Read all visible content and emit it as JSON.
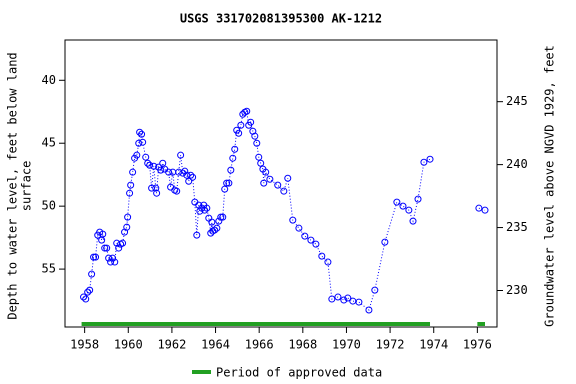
{
  "chart_data": {
    "type": "line",
    "title": "USGS 331702081395300 AK-1212",
    "ylabel": [
      "Depth to water level, feet below land",
      "surface"
    ],
    "y2label": "Groundwater level above NGVD 1929, feet",
    "xlim": [
      1957.1,
      1976.9
    ],
    "xticks": [
      1958,
      1960,
      1962,
      1964,
      1966,
      1968,
      1970,
      1972,
      1974,
      1976
    ],
    "ylim": [
      36.8,
      59.6
    ],
    "y_inverted": true,
    "yticks": [
      40,
      45,
      50,
      55
    ],
    "y2lim": [
      227.1,
      249.9
    ],
    "y2ticks": [
      230,
      235,
      240,
      245
    ],
    "series": [
      {
        "name": "Depth to water level",
        "color": "#0000ff",
        "x": [
          1957.95,
          1958.05,
          1958.14,
          1958.23,
          1958.32,
          1958.41,
          1958.5,
          1958.6,
          1958.69,
          1958.78,
          1958.83,
          1958.92,
          1959.01,
          1959.1,
          1959.19,
          1959.28,
          1959.38,
          1959.47,
          1959.56,
          1959.65,
          1959.74,
          1959.83,
          1959.93,
          1959.97,
          1960.06,
          1960.11,
          1960.2,
          1960.29,
          1960.39,
          1960.48,
          1960.52,
          1960.61,
          1960.66,
          1960.8,
          1960.89,
          1960.98,
          1961.07,
          1961.17,
          1961.26,
          1961.3,
          1961.39,
          1961.49,
          1961.58,
          1961.67,
          1961.85,
          1961.94,
          1962.04,
          1962.13,
          1962.22,
          1962.31,
          1962.4,
          1962.5,
          1962.59,
          1962.68,
          1962.77,
          1962.86,
          1962.95,
          1963.05,
          1963.14,
          1963.23,
          1963.28,
          1963.37,
          1963.46,
          1963.5,
          1963.6,
          1963.69,
          1963.78,
          1963.83,
          1963.87,
          1963.96,
          1964.06,
          1964.15,
          1964.24,
          1964.33,
          1964.42,
          1964.51,
          1964.61,
          1964.7,
          1964.79,
          1964.88,
          1964.97,
          1965.06,
          1965.16,
          1965.25,
          1965.34,
          1965.43,
          1965.52,
          1965.61,
          1965.71,
          1965.8,
          1965.89,
          1965.98,
          1966.07,
          1966.17,
          1966.21,
          1966.3,
          1966.49,
          1966.85,
          1967.13,
          1967.31,
          1967.54,
          1967.82,
          1968.09,
          1968.37,
          1968.6,
          1968.87,
          1969.15,
          1969.33,
          1969.61,
          1969.88,
          1970.06,
          1970.29,
          1970.57,
          1971.03,
          1971.3,
          1971.76,
          1972.31,
          1972.59,
          1972.86,
          1973.05,
          1973.28,
          1973.55,
          1973.83,
          null,
          1976.07,
          1976.35
        ],
        "values": [
          57.22,
          57.38,
          56.83,
          56.67,
          55.4,
          54.05,
          54.05,
          52.3,
          52.06,
          52.7,
          52.22,
          53.33,
          53.33,
          54.13,
          54.44,
          54.13,
          54.44,
          52.94,
          53.33,
          53.02,
          52.94,
          52.06,
          51.67,
          50.87,
          48.97,
          48.33,
          47.3,
          46.19,
          45.95,
          45.0,
          44.13,
          44.29,
          44.92,
          46.11,
          46.59,
          46.75,
          48.57,
          46.83,
          48.57,
          48.97,
          46.9,
          47.14,
          46.59,
          47.06,
          47.3,
          48.49,
          47.3,
          48.73,
          48.81,
          47.3,
          45.95,
          47.38,
          47.22,
          47.54,
          48.02,
          47.54,
          47.7,
          49.68,
          52.3,
          49.92,
          50.4,
          50.16,
          49.92,
          50.32,
          50.16,
          50.95,
          52.14,
          51.27,
          51.98,
          51.9,
          51.75,
          51.19,
          50.87,
          50.87,
          48.65,
          48.17,
          48.17,
          47.14,
          46.19,
          45.48,
          43.97,
          44.21,
          43.57,
          42.7,
          42.54,
          42.46,
          43.57,
          43.33,
          44.05,
          44.44,
          45.0,
          46.11,
          46.59,
          47.06,
          48.17,
          47.3,
          47.86,
          48.33,
          48.81,
          47.78,
          51.11,
          51.75,
          52.38,
          52.7,
          53.02,
          53.97,
          54.44,
          57.38,
          57.22,
          57.46,
          57.3,
          57.54,
          57.62,
          58.25,
          56.67,
          52.86,
          49.68,
          50.0,
          50.32,
          51.19,
          49.44,
          46.51,
          46.27,
          null,
          50.16,
          50.32
        ]
      }
    ],
    "approved": {
      "name": "Period of approved data",
      "color": "#22a022",
      "periods": [
        [
          1957.86,
          1973.83
        ],
        [
          1976.0,
          1976.35
        ]
      ]
    }
  }
}
